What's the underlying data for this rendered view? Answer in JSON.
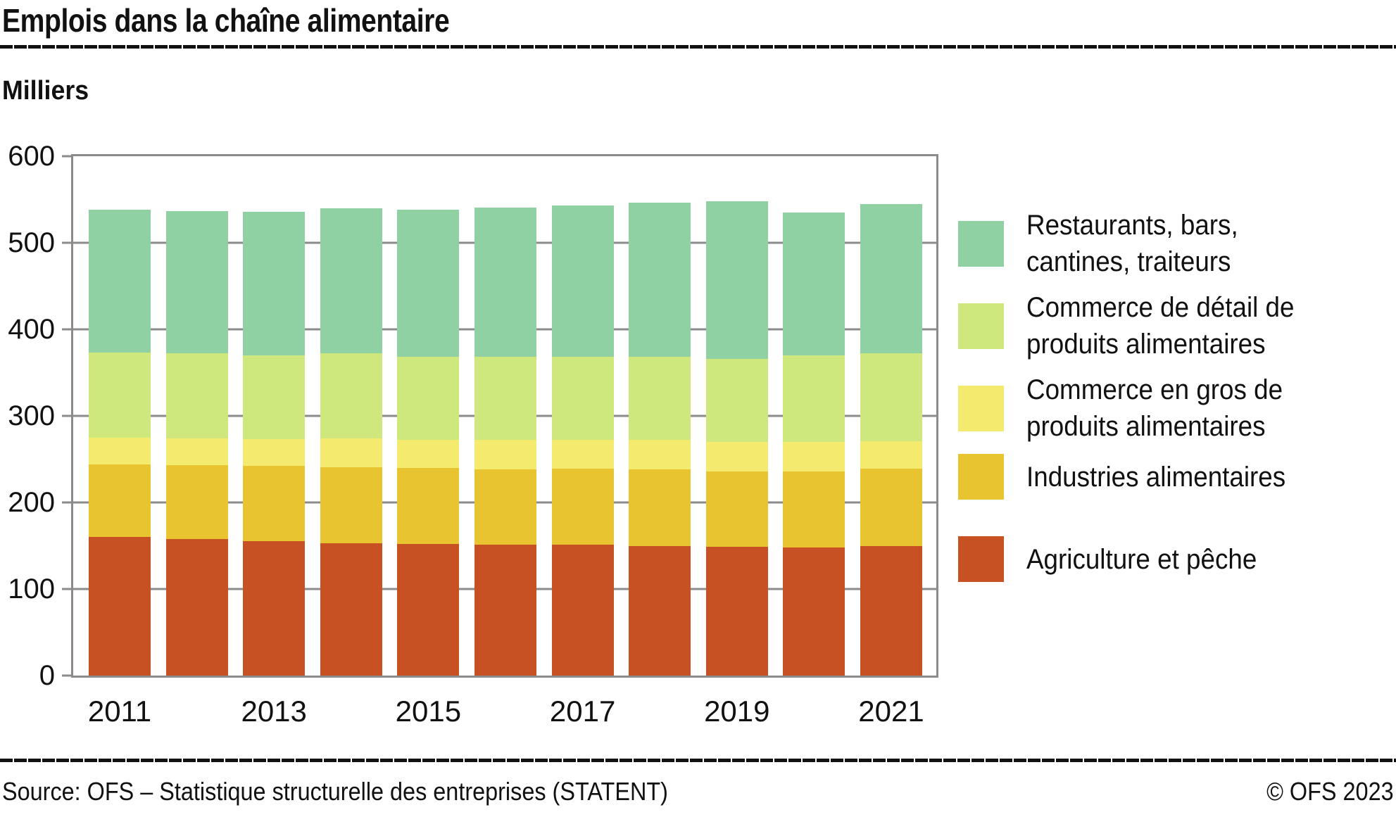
{
  "header": {
    "title": "Emplois dans la chaîne alimentaire"
  },
  "chart": {
    "unit_label": "Milliers"
  },
  "chart_data": {
    "type": "bar",
    "stacked": true,
    "title": "Emplois dans la chaîne alimentaire",
    "ylabel": "Milliers",
    "xlabel": "",
    "ylim": [
      0,
      600
    ],
    "yticks": [
      0,
      100,
      200,
      300,
      400,
      500,
      600
    ],
    "grid": "horizontal-behind-bars",
    "legend_position": "right",
    "categories": [
      "2011",
      "2012",
      "2013",
      "2014",
      "2015",
      "2016",
      "2017",
      "2018",
      "2019",
      "2020",
      "2021"
    ],
    "x_tick_labels": [
      "2011",
      "2013",
      "2015",
      "2017",
      "2019",
      "2021"
    ],
    "series": [
      {
        "name": "Agriculture et pêche",
        "color": "#c85123",
        "values": [
          160,
          158,
          155,
          153,
          152,
          151,
          151,
          150,
          149,
          148,
          150
        ]
      },
      {
        "name": "Industries alimentaires",
        "color": "#e9c431",
        "values": [
          84,
          85,
          87,
          88,
          88,
          87,
          88,
          88,
          87,
          88,
          89
        ]
      },
      {
        "name": "Commerce en gros de produits alimentaires",
        "color": "#f4eb6e",
        "values": [
          31,
          31,
          31,
          33,
          32,
          34,
          33,
          34,
          34,
          34,
          32
        ]
      },
      {
        "name": "Commerce de détail de produits alimentaires",
        "color": "#cfe87d",
        "values": [
          98,
          98,
          97,
          98,
          96,
          96,
          96,
          96,
          96,
          100,
          101
        ]
      },
      {
        "name": "Restaurants, bars, cantines, traiteurs",
        "color": "#90d1a4",
        "values": [
          165,
          165,
          166,
          168,
          170,
          173,
          175,
          178,
          182,
          165,
          173
        ]
      }
    ]
  },
  "legend": {
    "items": [
      {
        "lines": [
          "Restaurants, bars,",
          "cantines, traiteurs"
        ],
        "color": "#90d1a4"
      },
      {
        "lines": [
          "Commerce de détail de",
          "produits alimentaires"
        ],
        "color": "#cfe87d"
      },
      {
        "lines": [
          "Commerce en gros de",
          "produits alimentaires"
        ],
        "color": "#f4eb6e"
      },
      {
        "lines": [
          "Industries alimentaires"
        ],
        "color": "#e9c431"
      },
      {
        "lines": [
          "Agriculture et pêche"
        ],
        "color": "#c85123"
      }
    ]
  },
  "footer": {
    "source": "Source: OFS – Statistique structurelle des entreprises (STATENT)",
    "copyright": "© OFS 2023"
  }
}
